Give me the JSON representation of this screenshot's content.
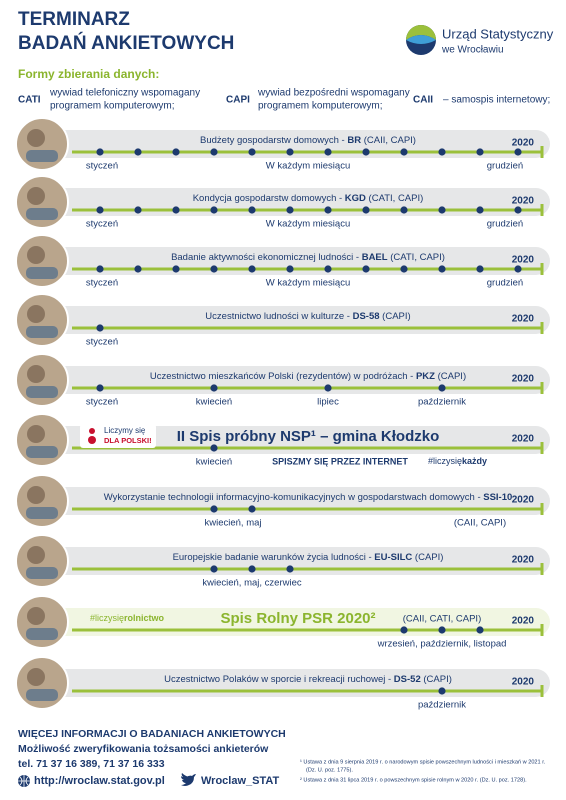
{
  "header": {
    "title_line1": "TERMINARZ",
    "title_line2": "BADAŃ ANKIETOWYCH",
    "logo_line1": "Urząd Statystyczny",
    "logo_line2": "we Wrocławiu"
  },
  "methods": {
    "heading": "Formy zbierania danych:",
    "items": [
      {
        "code": "CATI",
        "lines": [
          "wywiad telefoniczny wspomagany",
          "programem komputerowym;"
        ]
      },
      {
        "code": "CAPI",
        "lines": [
          "wywiad bezpośredni wspomagany",
          "programem komputerowym;"
        ]
      },
      {
        "code": "CAII",
        "lines": [
          "– samospis internetowy;"
        ]
      }
    ]
  },
  "surveys": [
    {
      "name": "Budżety gospodarstw domowych - ",
      "code": "BR",
      "methods": " (CAII, CAPI)",
      "year": "2020",
      "labels": [
        "styczeń",
        "W każdym miesiącu",
        "grudzień"
      ]
    },
    {
      "name": "Kondycja gospodarstw domowych - ",
      "code": "KGD",
      "methods": " (CATI, CAPI)",
      "year": "2020",
      "labels": [
        "styczeń",
        "W każdym miesiącu",
        "grudzień"
      ]
    },
    {
      "name": "Badanie aktywności ekonomicznej ludności - ",
      "code": "BAEL",
      "methods": " (CATI, CAPI)",
      "year": "2020",
      "labels": [
        "styczeń",
        "W każdym miesiącu",
        "grudzień"
      ]
    },
    {
      "name": "Uczestnictwo ludności w kulturze - ",
      "code": "DS-58",
      "methods": " (CAPI)",
      "year": "2020",
      "labels": [
        "styczeń"
      ]
    },
    {
      "name": "Uczestnictwo mieszkańców Polski (rezydentów) w podróżach - ",
      "code": "PKZ",
      "methods": " (CAPI)",
      "year": "2020",
      "labels": [
        "styczeń",
        "kwiecień",
        "lipiec",
        "październik"
      ]
    },
    {
      "name": "II Spis próbny NSP¹ – gmina Kłodzko",
      "year": "2020",
      "labels": [
        "kwiecień"
      ],
      "slogan": "SPISZMY SIĘ PRZEZ INTERNET",
      "hashtag": "#liczysię",
      "hashtag_bold": "każdy",
      "badge": [
        "Liczymy się",
        "DLA POLSKI!"
      ]
    },
    {
      "name": "Wykorzystanie technologii informacyjno-komunikacyjnych w gospodarstwach domowych - ",
      "code": "SSI-10",
      "year": "2020",
      "labels": [
        "kwiecień, maj",
        "(CAII, CAPI)"
      ]
    },
    {
      "name": "Europejskie badanie warunków życia ludności - ",
      "code": "EU-SILC",
      "methods": " (CAPI)",
      "year": "2020",
      "labels": [
        "kwiecień, maj, czerwiec"
      ]
    },
    {
      "name": "Spis Rolny PSR 2020²",
      "methods": "(CAII, CATI, CAPI)",
      "year": "2020",
      "labels": [
        "wrzesień, październik, listopad"
      ],
      "hashtag": "#liczysię",
      "hashtag_bold": "rolnictwo"
    },
    {
      "name": "Uczestnictwo Polaków w sporcie i rekreacji ruchowej - ",
      "code": "DS-52",
      "methods": " (CAPI)",
      "year": "2020",
      "labels": [
        "październik"
      ]
    }
  ],
  "footer": {
    "more_info": "WIĘCEJ INFORMACJI O BADANIACH ANKIETOWYCH",
    "verify": "Możliwość zweryfikowania tożsamości ankieterów",
    "phone": "tel. 71 37 16 389, 71 37 16 333",
    "website": "http://wroclaw.stat.gov.pl",
    "twitter": "Wroclaw_STAT",
    "footnotes": [
      "¹ Ustawa z dnia 9 sierpnia 2019 r. o narodowym spisie powszechnym ludności i mieszkań w 2021 r.",
      "(Dz. U. poz. 1775).",
      "² Ustawa z dnia 31 lipca 2019 r. o powszechnym spisie rolnym w 2020 r. (Dz. U. poz. 1728)."
    ]
  }
}
